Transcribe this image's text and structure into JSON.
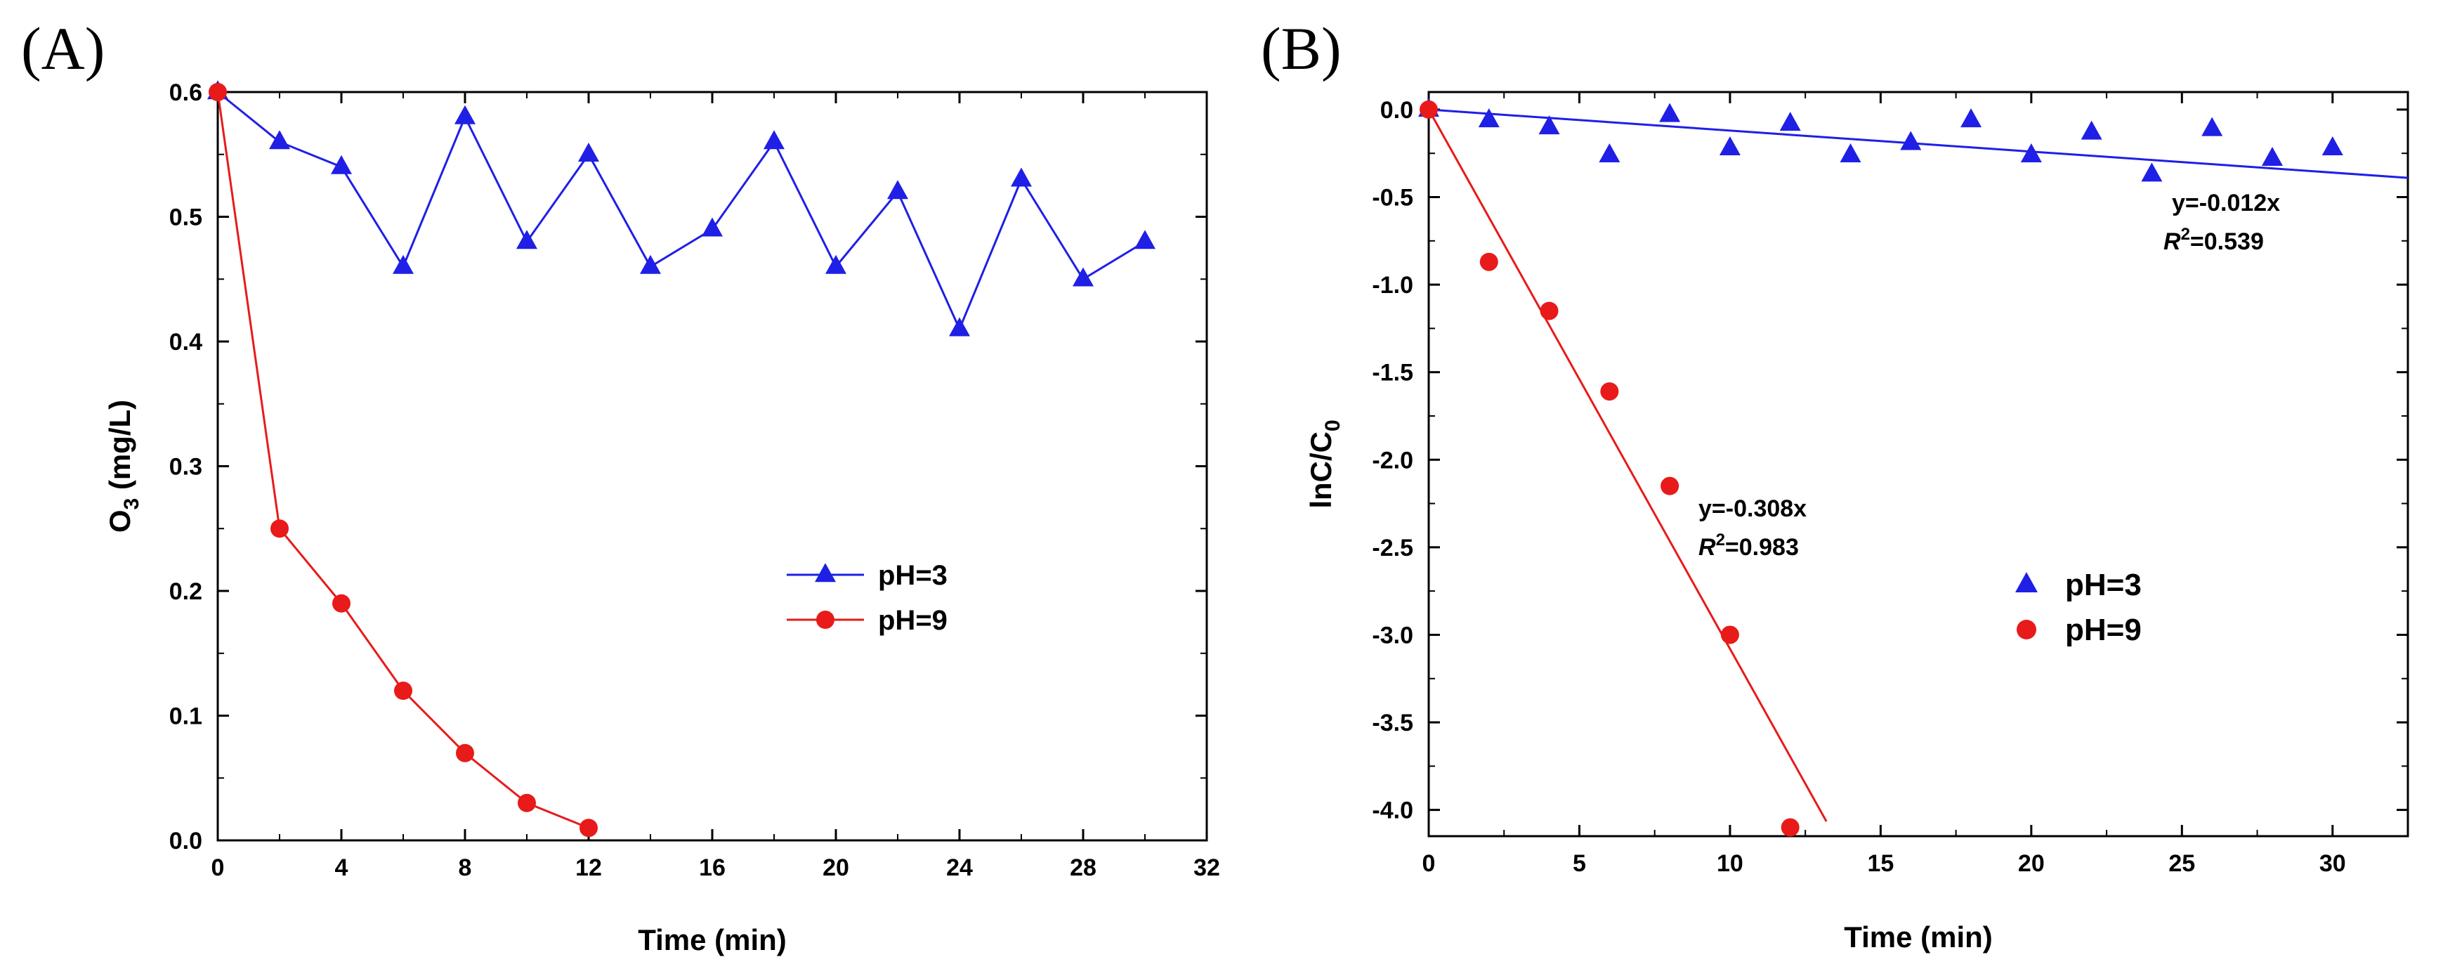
{
  "chart_data": [
    {
      "panel_label": "(A)",
      "type": "line",
      "xlabel": "Time (min)",
      "ylabel": "O",
      "ylabel_sub": "3",
      "ylabel_rest": "  (mg/L)",
      "xlim": [
        0,
        32
      ],
      "ylim": [
        0.0,
        0.6
      ],
      "xticks": [
        "0",
        "4",
        "8",
        "12",
        "16",
        "20",
        "24",
        "28",
        "32"
      ],
      "yticks": [
        "0.0",
        "0.1",
        "0.2",
        "0.3",
        "0.4",
        "0.5",
        "0.6"
      ],
      "grid": false,
      "legend_position": "center-right",
      "series": [
        {
          "name": "pH=3",
          "color": "#1f1fe6",
          "marker": "triangle",
          "points": [
            [
              0,
              0.6
            ],
            [
              2,
              0.56
            ],
            [
              4,
              0.54
            ],
            [
              6,
              0.46
            ],
            [
              8,
              0.58
            ],
            [
              10,
              0.48
            ],
            [
              12,
              0.55
            ],
            [
              14,
              0.46
            ],
            [
              16,
              0.49
            ],
            [
              18,
              0.56
            ],
            [
              20,
              0.46
            ],
            [
              22,
              0.52
            ],
            [
              24,
              0.41
            ],
            [
              26,
              0.53
            ],
            [
              28,
              0.45
            ],
            [
              30,
              0.48
            ]
          ]
        },
        {
          "name": "pH=9",
          "color": "#e81a1a",
          "marker": "circle",
          "points": [
            [
              0,
              0.6
            ],
            [
              2,
              0.25
            ],
            [
              4,
              0.19
            ],
            [
              6,
              0.12
            ],
            [
              8,
              0.07
            ],
            [
              10,
              0.03
            ],
            [
              12,
              0.01
            ]
          ]
        }
      ]
    },
    {
      "panel_label": "(B)",
      "type": "scatter",
      "xlabel": "Time (min)",
      "ylabel": "lnC/C",
      "ylabel_sub": "0",
      "xlim": [
        0,
        32.5
      ],
      "ylim": [
        -4.15,
        0.1
      ],
      "xticks": [
        "0",
        "5",
        "10",
        "15",
        "20",
        "25",
        "30"
      ],
      "yticks": [
        "0.0",
        "-0.5",
        "-1.0",
        "-1.5",
        "-2.0",
        "-2.5",
        "-3.0",
        "-3.5",
        "-4.0"
      ],
      "grid": false,
      "legend_position": "center-right",
      "series": [
        {
          "name": "pH=3",
          "color": "#1f1fe6",
          "marker": "triangle",
          "points": [
            [
              0,
              0.0
            ],
            [
              2,
              -0.06
            ],
            [
              4,
              -0.1
            ],
            [
              6,
              -0.26
            ],
            [
              8,
              -0.03
            ],
            [
              10,
              -0.22
            ],
            [
              12,
              -0.08
            ],
            [
              14,
              -0.26
            ],
            [
              16,
              -0.19
            ],
            [
              18,
              -0.06
            ],
            [
              20,
              -0.26
            ],
            [
              22,
              -0.13
            ],
            [
              24,
              -0.37
            ],
            [
              26,
              -0.11
            ],
            [
              28,
              -0.28
            ],
            [
              30,
              -0.22
            ]
          ],
          "fit": {
            "slope": -0.012,
            "x_range": [
              0,
              32.5
            ],
            "equation": "y=-0.012x",
            "r2_prefix": "R",
            "r2_sup": "2",
            "r2_value": "=0.539"
          }
        },
        {
          "name": "pH=9",
          "color": "#e81a1a",
          "marker": "circle",
          "points": [
            [
              0,
              0.0
            ],
            [
              2,
              -0.87
            ],
            [
              4,
              -1.15
            ],
            [
              6,
              -1.61
            ],
            [
              8,
              -2.15
            ],
            [
              10,
              -3.0
            ],
            [
              12,
              -4.1
            ]
          ],
          "fit": {
            "slope": -0.308,
            "x_range": [
              0,
              13.2
            ],
            "equation": "y=-0.308x",
            "r2_prefix": "R",
            "r2_sup": "2",
            "r2_value": "=0.983"
          }
        }
      ]
    }
  ]
}
